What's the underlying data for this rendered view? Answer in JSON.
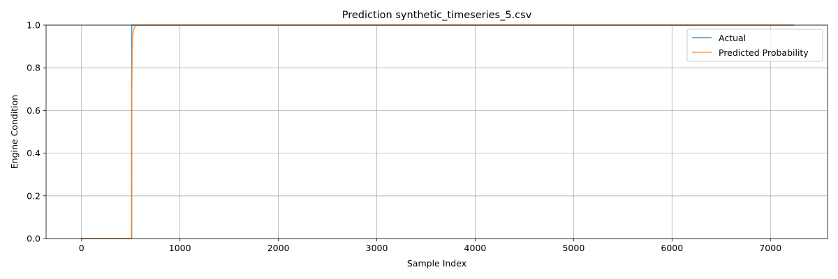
{
  "chart_data": {
    "type": "line",
    "title": "Prediction  synthetic_timeseries_5.csv",
    "xlabel": "Sample Index",
    "ylabel": "Engine Condition",
    "xlim": [
      -360,
      7580
    ],
    "ylim": [
      0,
      1
    ],
    "xticks": [
      0,
      1000,
      2000,
      3000,
      4000,
      5000,
      6000,
      7000
    ],
    "yticks": [
      0.0,
      0.2,
      0.4,
      0.6,
      0.8,
      1.0
    ],
    "grid": true,
    "legend_position": "top-right",
    "series": [
      {
        "name": "Actual",
        "color": "#1f77b4",
        "x": [
          0,
          509,
          510,
          7240
        ],
        "y": [
          0,
          0,
          1,
          1
        ]
      },
      {
        "name": "Predicted Probability",
        "color": "#ff7f0e",
        "x": [
          0,
          509,
          511,
          515,
          520,
          530,
          545,
          560,
          600,
          7240
        ],
        "y": [
          0,
          0,
          0.68,
          0.88,
          0.95,
          0.98,
          0.995,
          1.0,
          1.0,
          1.0
        ]
      }
    ]
  }
}
